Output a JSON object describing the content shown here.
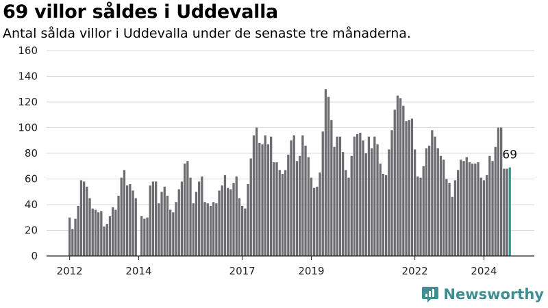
{
  "header": {
    "title": "69 villor såldes i Uddevalla",
    "subtitle": "Antal sålda villor i Uddevalla under de senaste tre månaderna."
  },
  "brand": {
    "name": "Newsworthy",
    "logo_icon": "bar-chart-icon",
    "color": "#3d8f91"
  },
  "colors": {
    "bar": "#6d6c71",
    "highlight": "#2a9d8f",
    "grid": "#d8d8d8",
    "axis": "#222222"
  },
  "chart_data": {
    "type": "bar",
    "title": "69 villor såldes i Uddevalla",
    "subtitle": "Antal sålda villor i Uddevalla under de senaste tre månaderna.",
    "xlabel": "",
    "ylabel": "",
    "ylim": [
      0,
      160
    ],
    "yticks": [
      0,
      20,
      40,
      60,
      80,
      100,
      120,
      140,
      160
    ],
    "grid": true,
    "x_tick_labels": [
      {
        "label": "2012",
        "index": 0
      },
      {
        "label": "2014",
        "index": 24
      },
      {
        "label": "2017",
        "index": 60
      },
      {
        "label": "2019",
        "index": 84
      },
      {
        "label": "2022",
        "index": 120
      },
      {
        "label": "2024",
        "index": 144
      }
    ],
    "highlight_index": 153,
    "highlight_label": "69",
    "values": [
      30,
      21,
      29,
      39,
      59,
      58,
      54,
      45,
      37,
      36,
      34,
      35,
      23,
      25,
      31,
      38,
      36,
      47,
      61,
      67,
      55,
      56,
      51,
      45,
      0,
      31,
      29,
      30,
      55,
      58,
      58,
      41,
      50,
      54,
      47,
      36,
      34,
      42,
      52,
      58,
      72,
      74,
      61,
      41,
      50,
      58,
      62,
      42,
      41,
      39,
      42,
      41,
      51,
      55,
      63,
      53,
      52,
      57,
      62,
      45,
      39,
      37,
      56,
      76,
      94,
      100,
      88,
      87,
      94,
      87,
      93,
      73,
      73,
      67,
      64,
      67,
      79,
      90,
      94,
      74,
      78,
      94,
      86,
      77,
      61,
      53,
      54,
      65,
      97,
      130,
      124,
      106,
      85,
      93,
      93,
      81,
      67,
      61,
      78,
      93,
      95,
      96,
      90,
      80,
      93,
      84,
      93,
      87,
      72,
      64,
      63,
      83,
      98,
      114,
      125,
      123,
      117,
      105,
      106,
      107,
      83,
      62,
      61,
      70,
      84,
      86,
      98,
      93,
      84,
      78,
      75,
      60,
      57,
      46,
      59,
      67,
      75,
      74,
      77,
      73,
      72,
      72,
      73,
      61,
      59,
      63,
      78,
      74,
      85,
      100,
      100,
      68,
      68,
      69
    ]
  }
}
